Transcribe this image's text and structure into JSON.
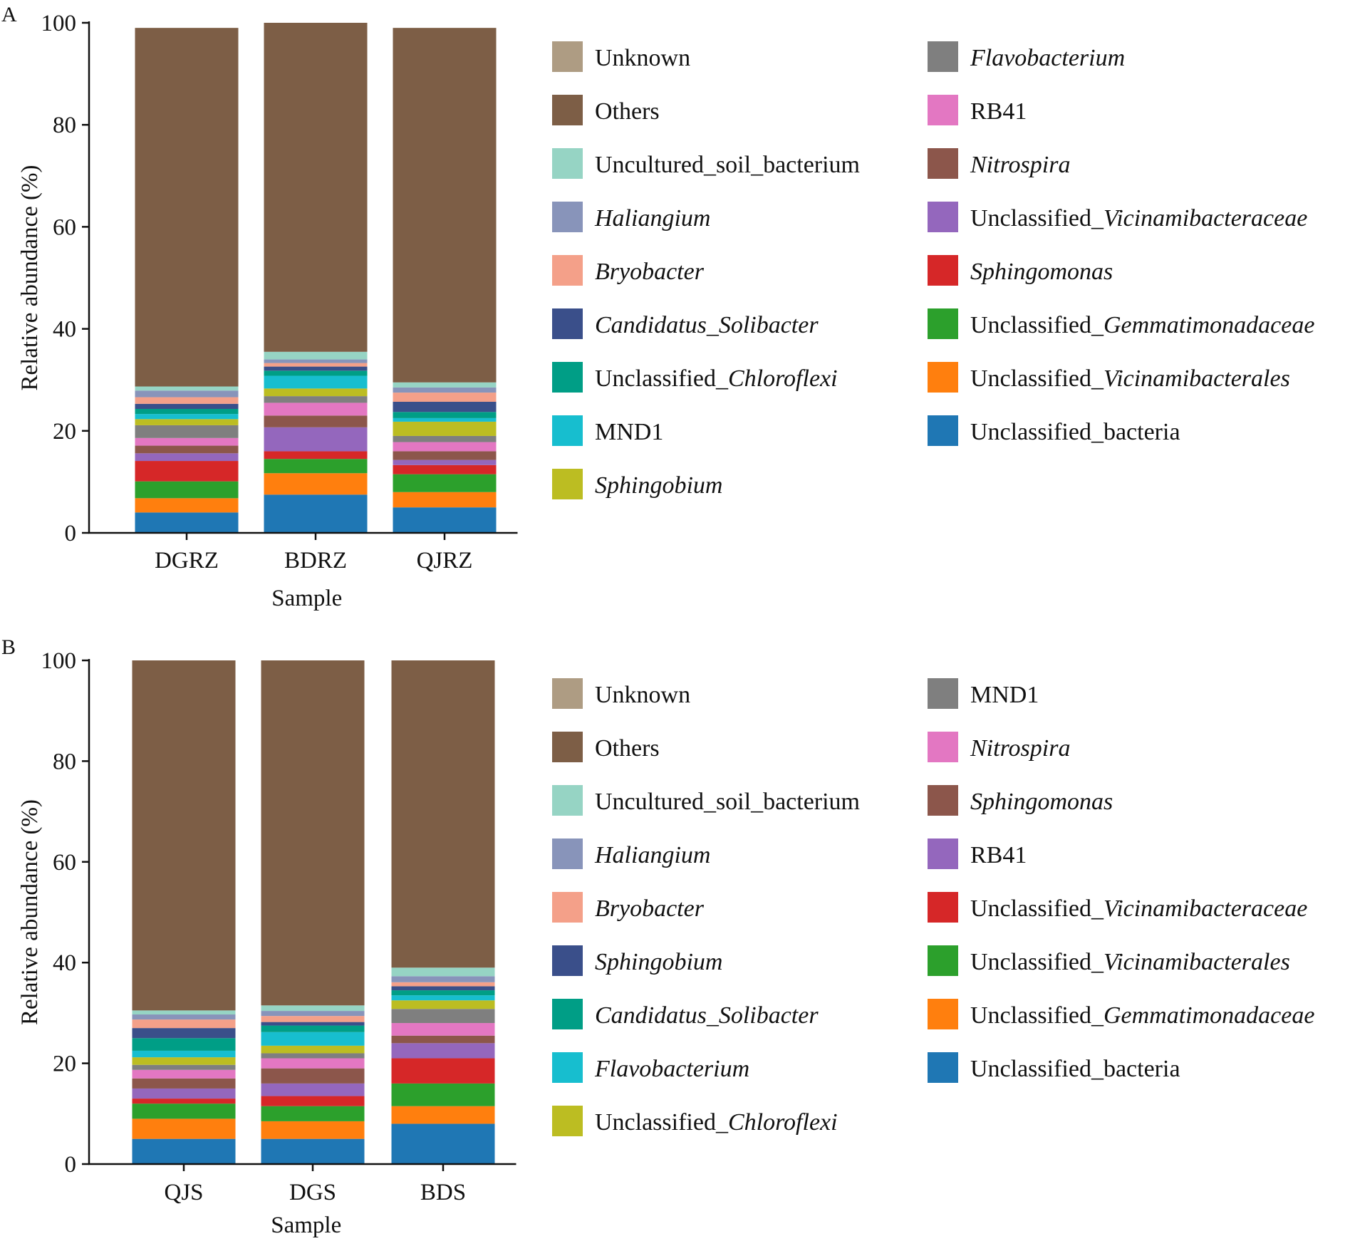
{
  "chart_data": [
    {
      "panel": "A",
      "type": "bar",
      "stacked": true,
      "xlabel": "Sample",
      "ylabel": "Relative abundance (%)",
      "ylim": [
        0,
        100
      ],
      "yticks": [
        0,
        20,
        40,
        60,
        80,
        100
      ],
      "categories": [
        "DGRZ",
        "BDRZ",
        "QJRZ"
      ],
      "legend": {
        "placement": "right",
        "columns": 2
      },
      "series": [
        {
          "name": "Unclassified_bacteria",
          "html": "Unclassified_bacteria",
          "color": "#1f77b4",
          "values": [
            4.0,
            7.5,
            5.0
          ]
        },
        {
          "name": "Unclassified_Vicinamibacterales",
          "html": "Unclassified_<i>Vicinamibacterales</i>",
          "color": "#ff7f0e",
          "values": [
            2.8,
            4.2,
            3.0
          ]
        },
        {
          "name": "Unclassified_Gemmatimonadaceae",
          "html": "Unclassified_<i>Gemmatimonadaceae</i>",
          "color": "#2ca02c",
          "values": [
            3.3,
            2.8,
            3.5
          ]
        },
        {
          "name": "Sphingomonas",
          "html": "<i>Sphingomonas</i>",
          "color": "#d62728",
          "values": [
            4.0,
            1.5,
            1.8
          ]
        },
        {
          "name": "Unclassified_Vicinamibacteraceae",
          "html": "Unclassified_<i>Vicinamibacteraceae</i>",
          "color": "#9467bd",
          "values": [
            1.5,
            4.7,
            1.0
          ]
        },
        {
          "name": "Nitrospira",
          "html": "<i>Nitrospira</i>",
          "color": "#8c564b",
          "values": [
            1.5,
            2.3,
            1.7
          ]
        },
        {
          "name": "RB41",
          "html": "RB41",
          "color": "#e377c2",
          "values": [
            1.5,
            2.5,
            1.8
          ]
        },
        {
          "name": "Flavobacterium",
          "html": "<i>Flavobacterium</i>",
          "color": "#7f7f7f",
          "values": [
            2.5,
            1.3,
            1.2
          ]
        },
        {
          "name": "Sphingobium",
          "html": "<i>Sphingobium</i>",
          "color": "#bcbd22",
          "values": [
            1.2,
            1.5,
            2.8
          ]
        },
        {
          "name": "MND1",
          "html": "MND1",
          "color": "#17becf",
          "values": [
            1.0,
            2.5,
            0.7
          ]
        },
        {
          "name": "Unclassified_Chloroflexi",
          "html": "Unclassified_<i>Chloroflexi</i>",
          "color": "#009e86",
          "values": [
            1.0,
            1.0,
            1.2
          ]
        },
        {
          "name": "Candidatus_Solibacter",
          "html": "<i>Candidatus</i>_<i>Solibacter</i>",
          "color": "#3a4f8a",
          "values": [
            1.0,
            0.8,
            2.0
          ]
        },
        {
          "name": "Bryobacter",
          "html": "<i>Bryobacter</i>",
          "color": "#f4a089",
          "values": [
            1.3,
            0.7,
            1.8
          ]
        },
        {
          "name": "Haliangium",
          "html": "<i>Haliangium</i>",
          "color": "#8894ba",
          "values": [
            1.3,
            0.7,
            1.0
          ]
        },
        {
          "name": "Uncultured_soil_bacterium",
          "html": "Uncultured_soil_bacterium",
          "color": "#96d4c4",
          "values": [
            0.8,
            1.5,
            1.0
          ]
        },
        {
          "name": "Others",
          "html": "Others",
          "color": "#7d5e46",
          "values": [
            70.3,
            64.5,
            69.5
          ]
        },
        {
          "name": "Unknown",
          "html": "Unknown",
          "color": "#ae9c83",
          "values": [
            0.0,
            0.0,
            0.0
          ]
        }
      ]
    },
    {
      "panel": "B",
      "type": "bar",
      "stacked": true,
      "xlabel": "Sample",
      "ylabel": "Relative abundance (%)",
      "ylim": [
        0,
        100
      ],
      "yticks": [
        0,
        20,
        40,
        60,
        80,
        100
      ],
      "categories": [
        "QJS",
        "DGS",
        "BDS"
      ],
      "legend": {
        "placement": "right",
        "columns": 2
      },
      "series": [
        {
          "name": "Unclassified_bacteria",
          "html": "Unclassified_bacteria",
          "color": "#1f77b4",
          "values": [
            5.0,
            5.0,
            8.0
          ]
        },
        {
          "name": "Unclassified_Gemmatimonadaceae",
          "html": "Unclassified_<i>Gemmatimonadaceae</i>",
          "color": "#ff7f0e",
          "values": [
            4.0,
            3.5,
            3.5
          ]
        },
        {
          "name": "Unclassified_Vicinamibacterales",
          "html": "Unclassified_<i>Vicinamibacterales</i>",
          "color": "#2ca02c",
          "values": [
            3.0,
            3.0,
            4.5
          ]
        },
        {
          "name": "Unclassified_Vicinamibacteraceae",
          "html": "Unclassified_<i>Vicinamibacteraceae</i>",
          "color": "#d62728",
          "values": [
            1.0,
            2.0,
            5.0
          ]
        },
        {
          "name": "RB41",
          "html": "RB41",
          "color": "#9467bd",
          "values": [
            2.0,
            2.5,
            3.0
          ]
        },
        {
          "name": "Sphingomonas",
          "html": "<i>Sphingomonas</i>",
          "color": "#8c564b",
          "values": [
            2.0,
            3.0,
            1.5
          ]
        },
        {
          "name": "Nitrospira",
          "html": "<i>Nitrospira</i>",
          "color": "#e377c2",
          "values": [
            1.7,
            2.0,
            2.5
          ]
        },
        {
          "name": "MND1",
          "html": "MND1",
          "color": "#7f7f7f",
          "values": [
            1.0,
            1.0,
            2.8
          ]
        },
        {
          "name": "Unclassified_Chloroflexi",
          "html": "Unclassified_<i>Chloroflexi</i>",
          "color": "#bcbd22",
          "values": [
            1.5,
            1.5,
            1.7
          ]
        },
        {
          "name": "Flavobacterium",
          "html": "<i>Flavobacterium</i>",
          "color": "#17becf",
          "values": [
            1.3,
            2.7,
            1.0
          ]
        },
        {
          "name": "Candidatus_Solibacter",
          "html": "<i>Candidatus</i>_<i>Solibacter</i>",
          "color": "#009e86",
          "values": [
            2.5,
            1.3,
            1.0
          ]
        },
        {
          "name": "Sphingobium",
          "html": "<i>Sphingobium</i>",
          "color": "#3a4f8a",
          "values": [
            2.0,
            0.7,
            0.8
          ]
        },
        {
          "name": "Bryobacter",
          "html": "<i>Bryobacter</i>",
          "color": "#f4a089",
          "values": [
            1.7,
            1.2,
            0.8
          ]
        },
        {
          "name": "Haliangium",
          "html": "<i>Haliangium</i>",
          "color": "#8894ba",
          "values": [
            1.0,
            1.0,
            1.2
          ]
        },
        {
          "name": "Uncultured_soil_bacterium",
          "html": "Uncultured_soil_bacterium",
          "color": "#96d4c4",
          "values": [
            0.8,
            1.1,
            1.7
          ]
        },
        {
          "name": "Others",
          "html": "Others",
          "color": "#7d5e46",
          "values": [
            69.5,
            68.5,
            61.0
          ]
        },
        {
          "name": "Unknown",
          "html": "Unknown",
          "color": "#ae9c83",
          "values": [
            0.0,
            0.0,
            0.0
          ]
        }
      ],
      "legend_order": [
        "Unknown",
        "Others",
        "Uncultured_soil_bacterium",
        "Haliangium",
        "Bryobacter",
        "Sphingobium",
        "Candidatus_Solibacter",
        "Flavobacterium",
        "Unclassified_Chloroflexi",
        "MND1",
        "Nitrospira",
        "Sphingomonas",
        "RB41",
        "Unclassified_Vicinamibacteraceae",
        "Unclassified_Vicinamibacterales",
        "Unclassified_Gemmatimonadaceae",
        "Unclassified_bacteria"
      ]
    }
  ],
  "legend_order_A": [
    "Unknown",
    "Others",
    "Uncultured_soil_bacterium",
    "Haliangium",
    "Bryobacter",
    "Candidatus_Solibacter",
    "Unclassified_Chloroflexi",
    "MND1",
    "Sphingobium",
    "Flavobacterium",
    "RB41",
    "Nitrospira",
    "Unclassified_Vicinamibacteraceae",
    "Sphingomonas",
    "Unclassified_Gemmatimonadaceae",
    "Unclassified_Vicinamibacterales",
    "Unclassified_bacteria"
  ]
}
